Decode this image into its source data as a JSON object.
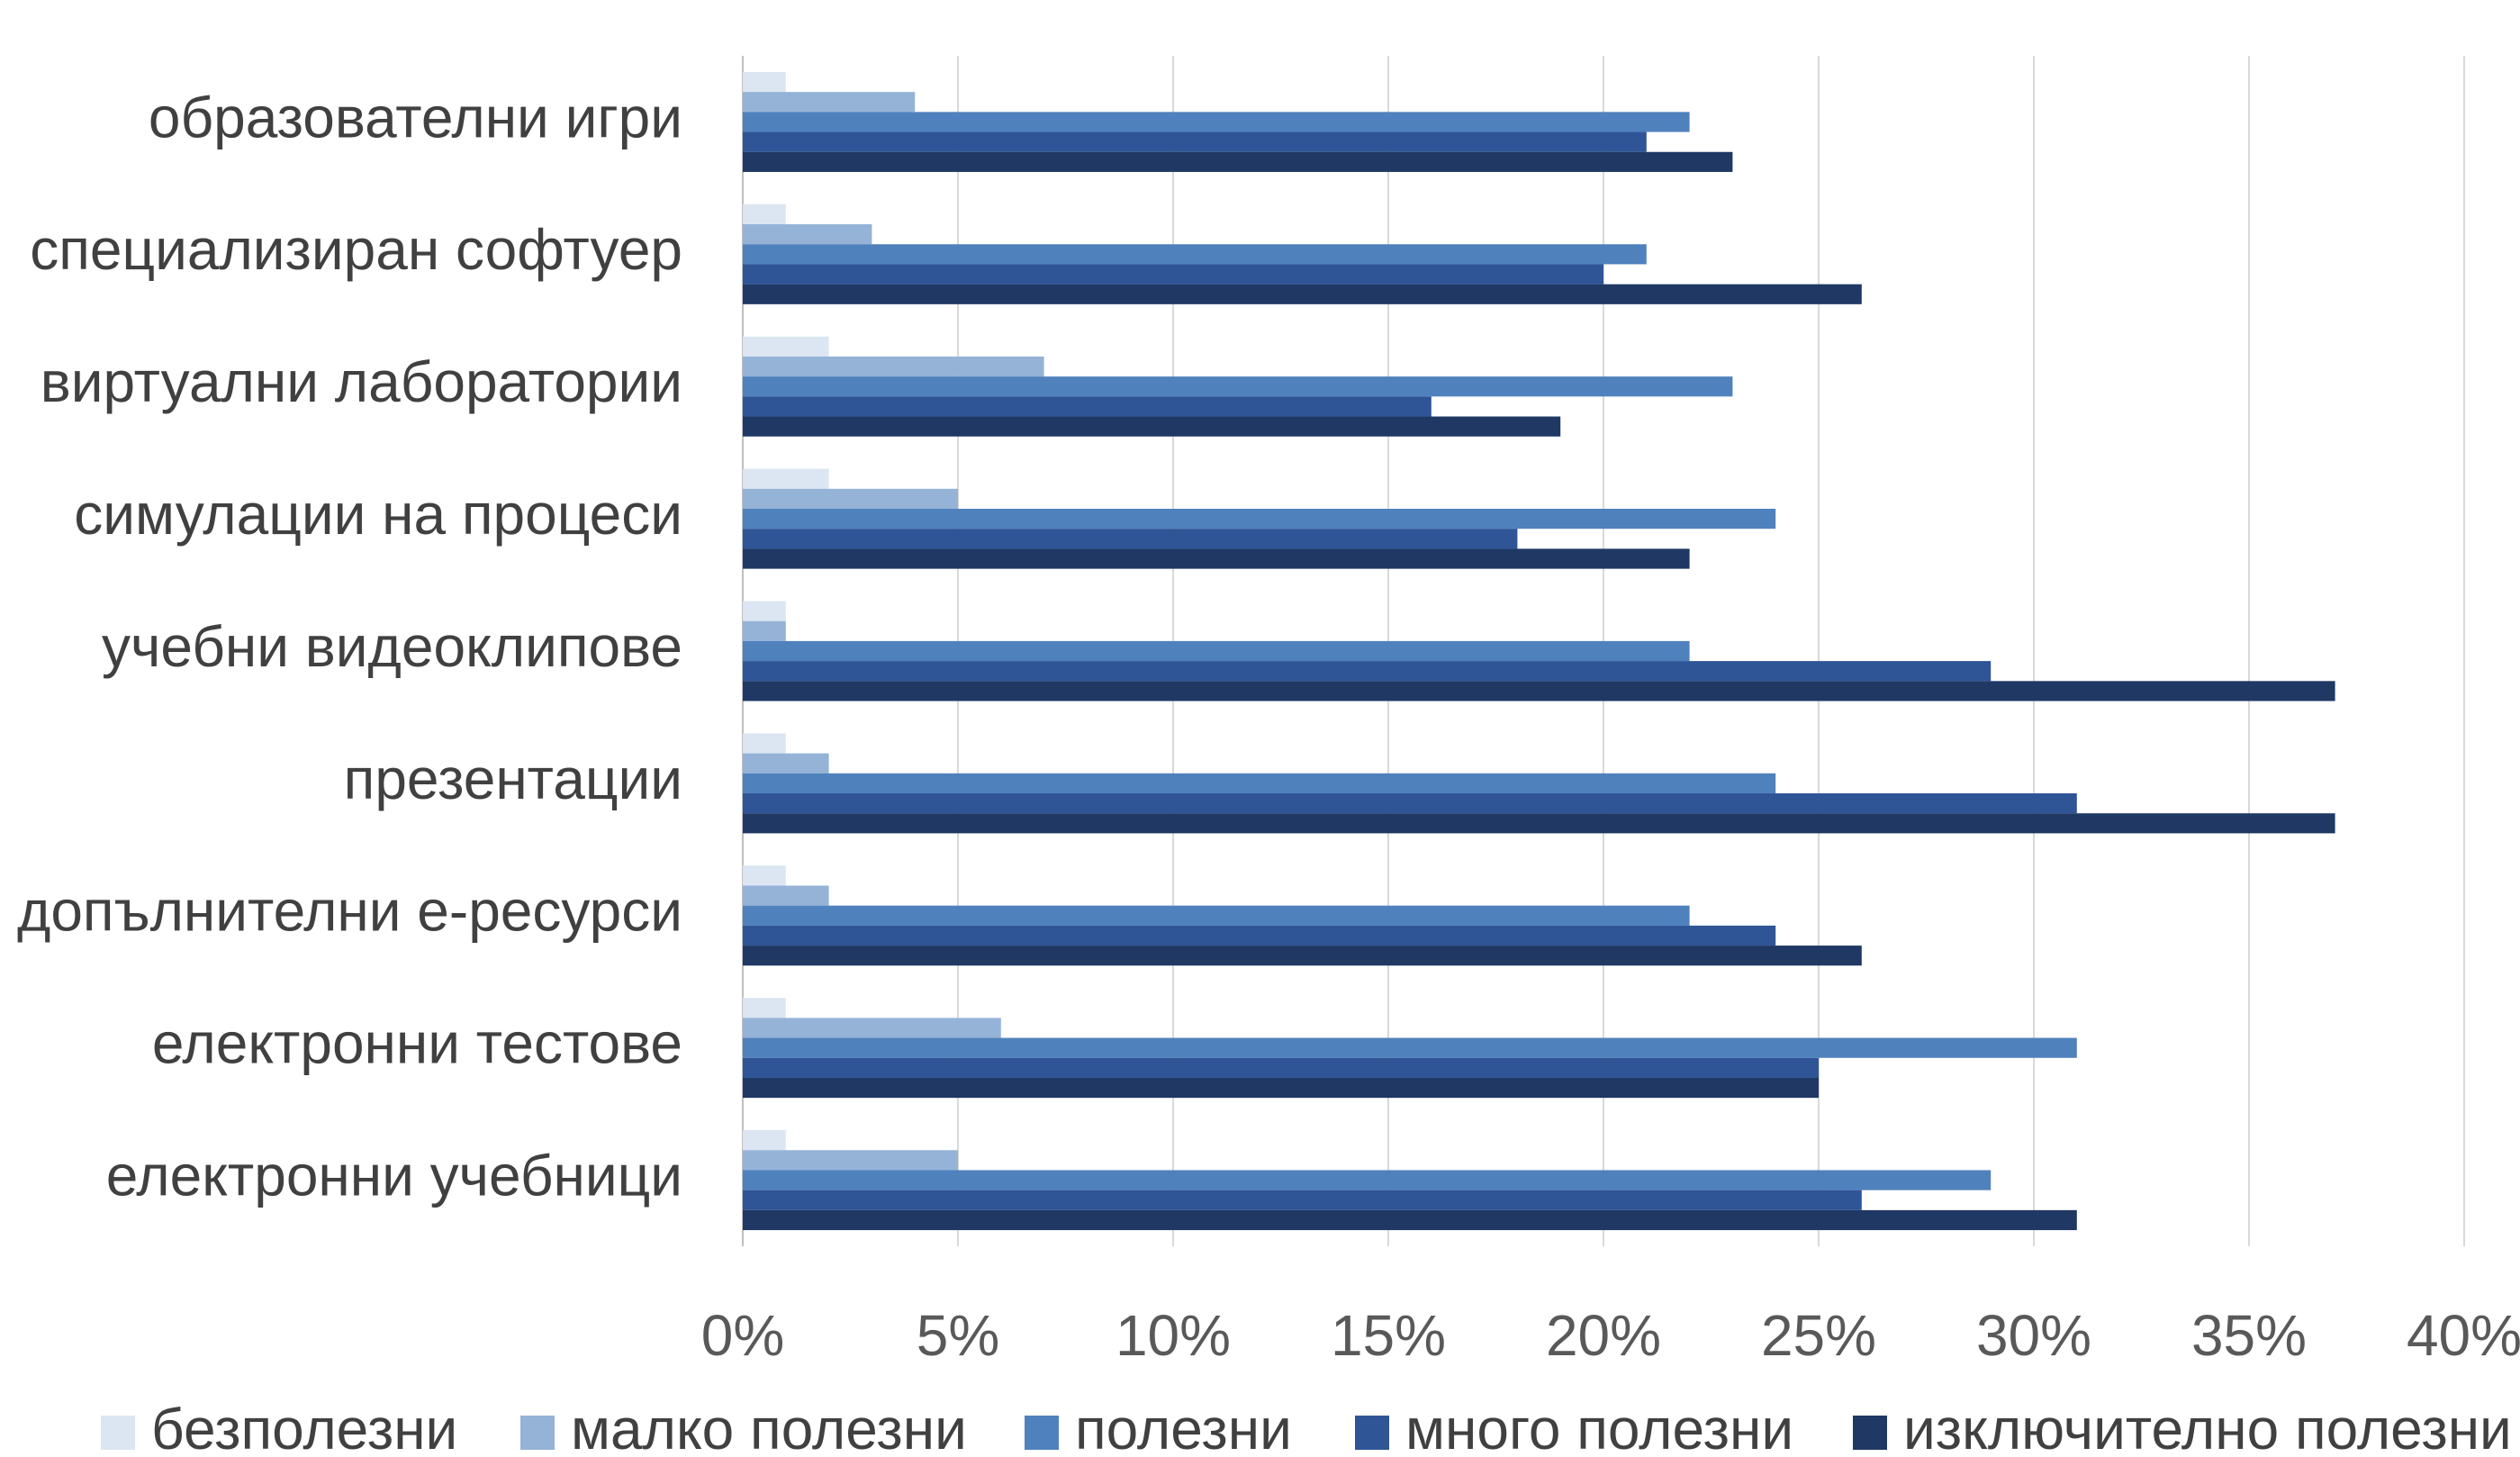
{
  "chart_data": {
    "type": "bar",
    "orientation": "horizontal",
    "title": "",
    "xlabel": "",
    "ylabel": "",
    "xlim": [
      0,
      40
    ],
    "ticks": [
      "0%",
      "5%",
      "10%",
      "15%",
      "20%",
      "25%",
      "30%",
      "35%",
      "40%"
    ],
    "grid": "vertical",
    "legend_position": "bottom",
    "categories": [
      "образователни игри",
      "специализиран софтуер",
      "виртуални лаборатории",
      "симулации на процеси",
      "учебни видеоклипове",
      "презентации",
      "допълнителни е-ресурси",
      "електронни тестове",
      "електронни учебници"
    ],
    "series": [
      {
        "name": "безполезни",
        "color": "#dce6f2",
        "values": [
          1,
          1,
          2,
          2,
          1,
          1,
          1,
          1,
          1
        ]
      },
      {
        "name": "малко полезни",
        "color": "#95b3d7",
        "values": [
          4,
          3,
          7,
          5,
          1,
          2,
          2,
          6,
          5
        ]
      },
      {
        "name": "полезни",
        "color": "#4f81bd",
        "values": [
          22,
          21,
          23,
          24,
          22,
          24,
          22,
          31,
          29
        ]
      },
      {
        "name": "много полезни",
        "color": "#2f5597",
        "values": [
          21,
          20,
          16,
          18,
          29,
          31,
          24,
          25,
          26
        ]
      },
      {
        "name": "изключително полезни",
        "color": "#1f3864",
        "values": [
          23,
          26,
          19,
          22,
          37,
          37,
          26,
          25,
          31
        ]
      }
    ]
  }
}
